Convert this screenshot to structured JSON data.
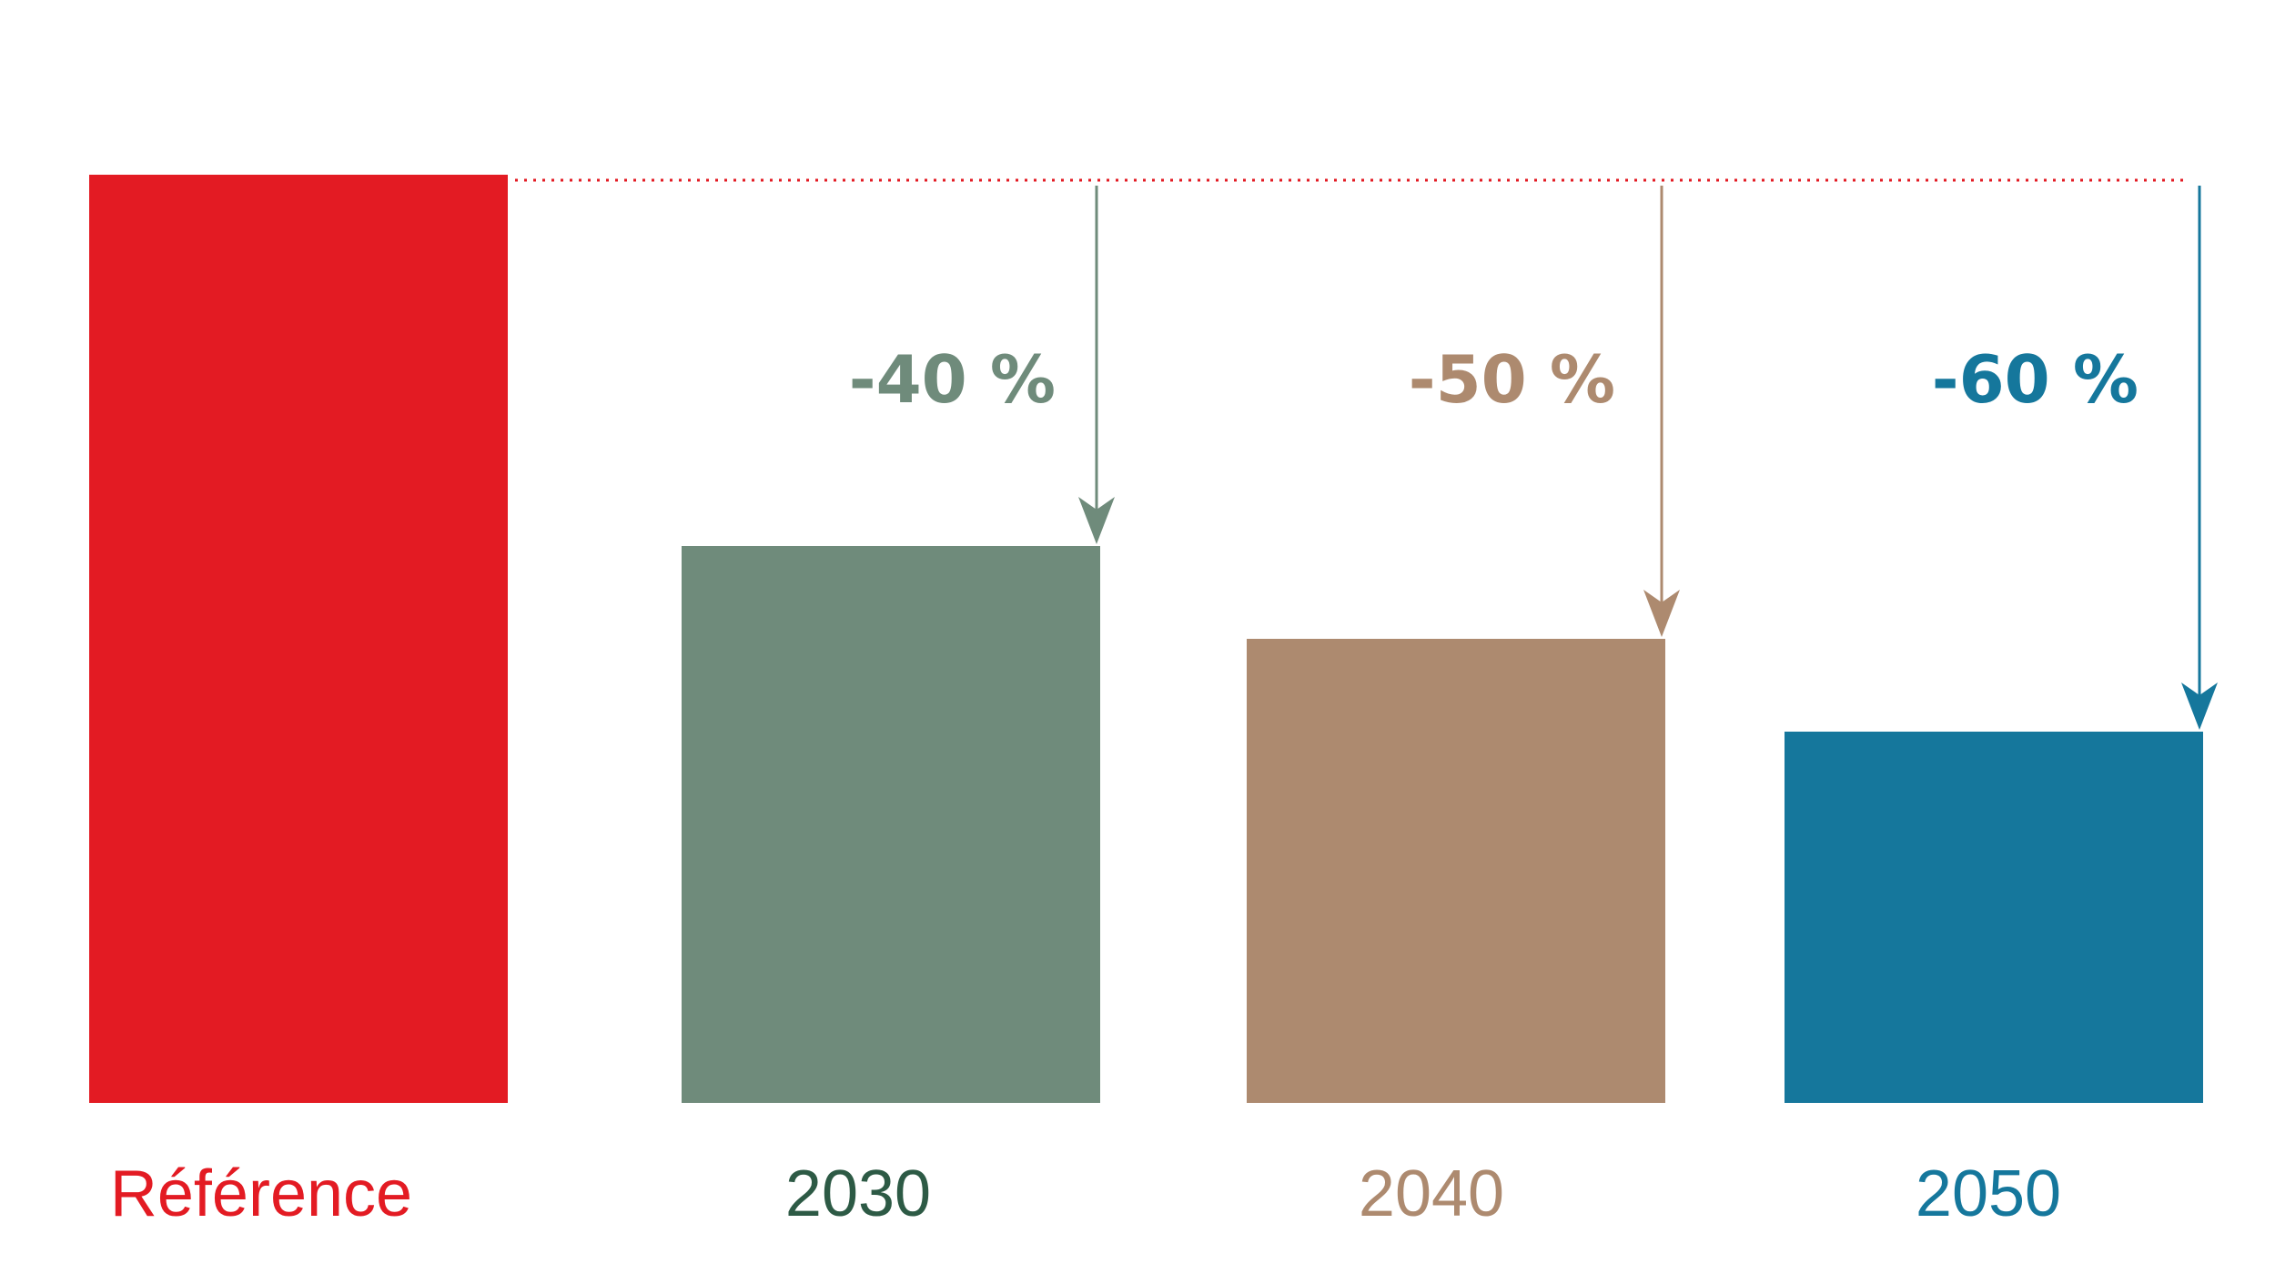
{
  "chart_data": {
    "type": "bar",
    "categories": [
      "Référence",
      "2030",
      "2040",
      "2050"
    ],
    "values": [
      100,
      60,
      50,
      40
    ],
    "ylim": [
      0,
      100
    ],
    "grid": false,
    "annotations": [
      {
        "category": "2030",
        "text": "-40 %"
      },
      {
        "category": "2040",
        "text": "-50 %"
      },
      {
        "category": "2050",
        "text": "-60 %"
      }
    ],
    "colors": [
      "#e31b23",
      "#6f8b7b",
      "#ad8a6f",
      "#15779c"
    ],
    "label_colors": [
      "#e31b23",
      "#2d5a45",
      "#ad8a6f",
      "#15779c"
    ]
  }
}
